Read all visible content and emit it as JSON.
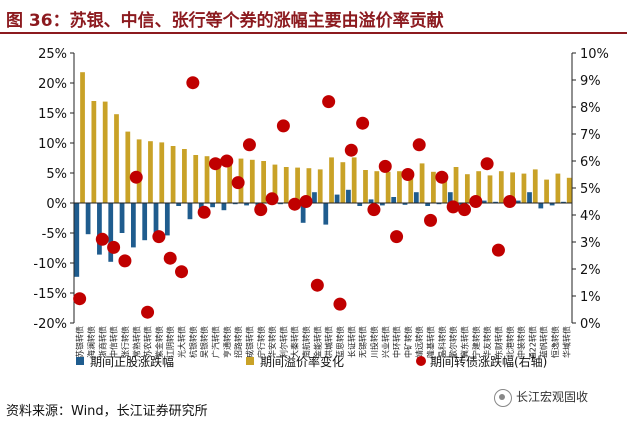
{
  "title": "图 36：苏银、中信、张行等个券的涨幅主要由溢价率贡献",
  "source": "资料来源：Wind，长江证券研究所",
  "watermark": "长江宏观固收",
  "colors": {
    "title": "#8c1a1f",
    "stock": "#1f5c8e",
    "premium": "#c9a227",
    "cb": "#c00000"
  },
  "chart_data": {
    "type": "bar",
    "categories": [
      "苏银转债",
      "海澜转债",
      "浙商转债",
      "中信转债",
      "张行转债",
      "常熟转债",
      "苏农转债",
      "紫金转债",
      "江阴转债",
      "光大转债",
      "杭银转债",
      "吴银转债",
      "广汽转债",
      "亨通转债",
      "招路转债",
      "成银转债",
      "宁行转债",
      "华安转债",
      "利尔转债",
      "大秦转债",
      "南航转债",
      "金能转债",
      "洪城转债",
      "蓝思转债",
      "长证转债",
      "无锡转债",
      "川投转债",
      "兴业转债",
      "中环转债",
      "中矿转债",
      "靖远转债",
      "隆基转债",
      "晶科转债",
      "歌尔转债",
      "冀东转债",
      "宁建转债",
      "华友转债",
      "东财转债",
      "北港转债",
      "中装转债",
      "通22转债",
      "蓝帆转债",
      "恒逸转债",
      "华域转债"
    ],
    "y_left": {
      "min": -20,
      "max": 25,
      "step": 5,
      "unit": "%"
    },
    "y_right": {
      "min": 0,
      "max": 10,
      "step": 1,
      "unit": "%"
    },
    "series": [
      {
        "name": "期间正股涨跌幅",
        "type": "bar",
        "axis": "left",
        "values": [
          -12.3,
          -5.2,
          -8.6,
          -9.8,
          -5.0,
          -7.4,
          -6.2,
          -5.8,
          -5.4,
          -0.5,
          -2.7,
          -1.2,
          -0.7,
          -1.2,
          -0.2,
          -0.4,
          -0.8,
          1.4,
          -0.2,
          0.2,
          -3.3,
          1.8,
          -3.6,
          1.4,
          2.2,
          -0.5,
          0.6,
          -0.4,
          1.0,
          -0.3,
          1.8,
          -0.5,
          -0.2,
          1.8,
          -0.3,
          -0.3,
          0.4,
          0.2,
          -0.3,
          0.4,
          1.8,
          -0.9,
          -0.4,
          0.2
        ]
      },
      {
        "name": "期间溢价率变化",
        "type": "bar",
        "axis": "left",
        "values": [
          21.8,
          17.0,
          16.9,
          14.8,
          11.9,
          10.6,
          10.3,
          10.1,
          9.5,
          9.0,
          8.0,
          7.8,
          7.4,
          7.5,
          7.4,
          7.2,
          7.0,
          6.4,
          6.0,
          5.9,
          5.8,
          5.6,
          7.6,
          6.8,
          7.6,
          5.5,
          5.3,
          5.2,
          5.3,
          5.1,
          6.6,
          5.2,
          4.4,
          6.0,
          4.8,
          5.3,
          4.6,
          5.3,
          5.1,
          4.9,
          5.6,
          3.9,
          4.9,
          4.2
        ]
      },
      {
        "name": "期间转债涨跌幅(右轴)",
        "type": "scatter",
        "axis": "right",
        "values": [
          0.9,
          null,
          3.1,
          2.8,
          2.3,
          5.4,
          0.4,
          3.2,
          2.4,
          1.9,
          8.9,
          4.1,
          5.9,
          6.0,
          5.2,
          6.6,
          4.2,
          4.6,
          7.3,
          4.4,
          4.5,
          1.4,
          8.2,
          0.7,
          6.4,
          7.4,
          4.2,
          5.8,
          3.2,
          5.5,
          6.6,
          3.8,
          5.4,
          4.3,
          4.2,
          4.5,
          5.9,
          2.7,
          4.5,
          null,
          null,
          null,
          null,
          null
        ]
      }
    ],
    "legend": {
      "position": "bottom",
      "labels": [
        "期间正股涨跌幅",
        "期间溢价率变化",
        "期间转债涨跌幅(右轴)"
      ]
    },
    "grid": false
  }
}
